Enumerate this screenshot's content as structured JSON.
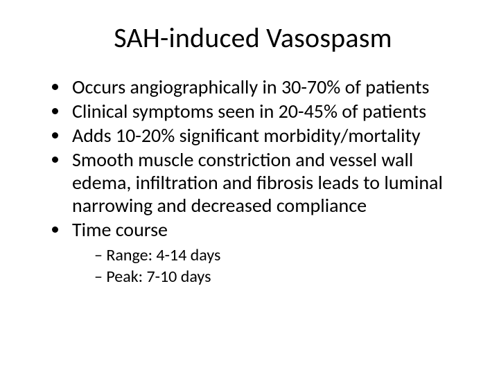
{
  "slide": {
    "title": "SAH-induced Vasospasm",
    "bullets": [
      "Occurs angiographically in 30-70% of patients",
      "Clinical symptoms seen in 20-45% of patients",
      "Adds 10-20% significant morbidity/mortality",
      "Smooth muscle constriction and vessel wall edema, infiltration and fibrosis leads to luminal narrowing and decreased compliance",
      "Time course"
    ],
    "sub_bullets": [
      "Range: 4-14 days",
      "Peak:  7-10 days"
    ],
    "colors": {
      "background": "#ffffff",
      "text": "#000000"
    },
    "typography": {
      "title_fontsize": 40,
      "body_fontsize": 28,
      "sub_fontsize": 24,
      "font_family": "Calibri"
    }
  }
}
